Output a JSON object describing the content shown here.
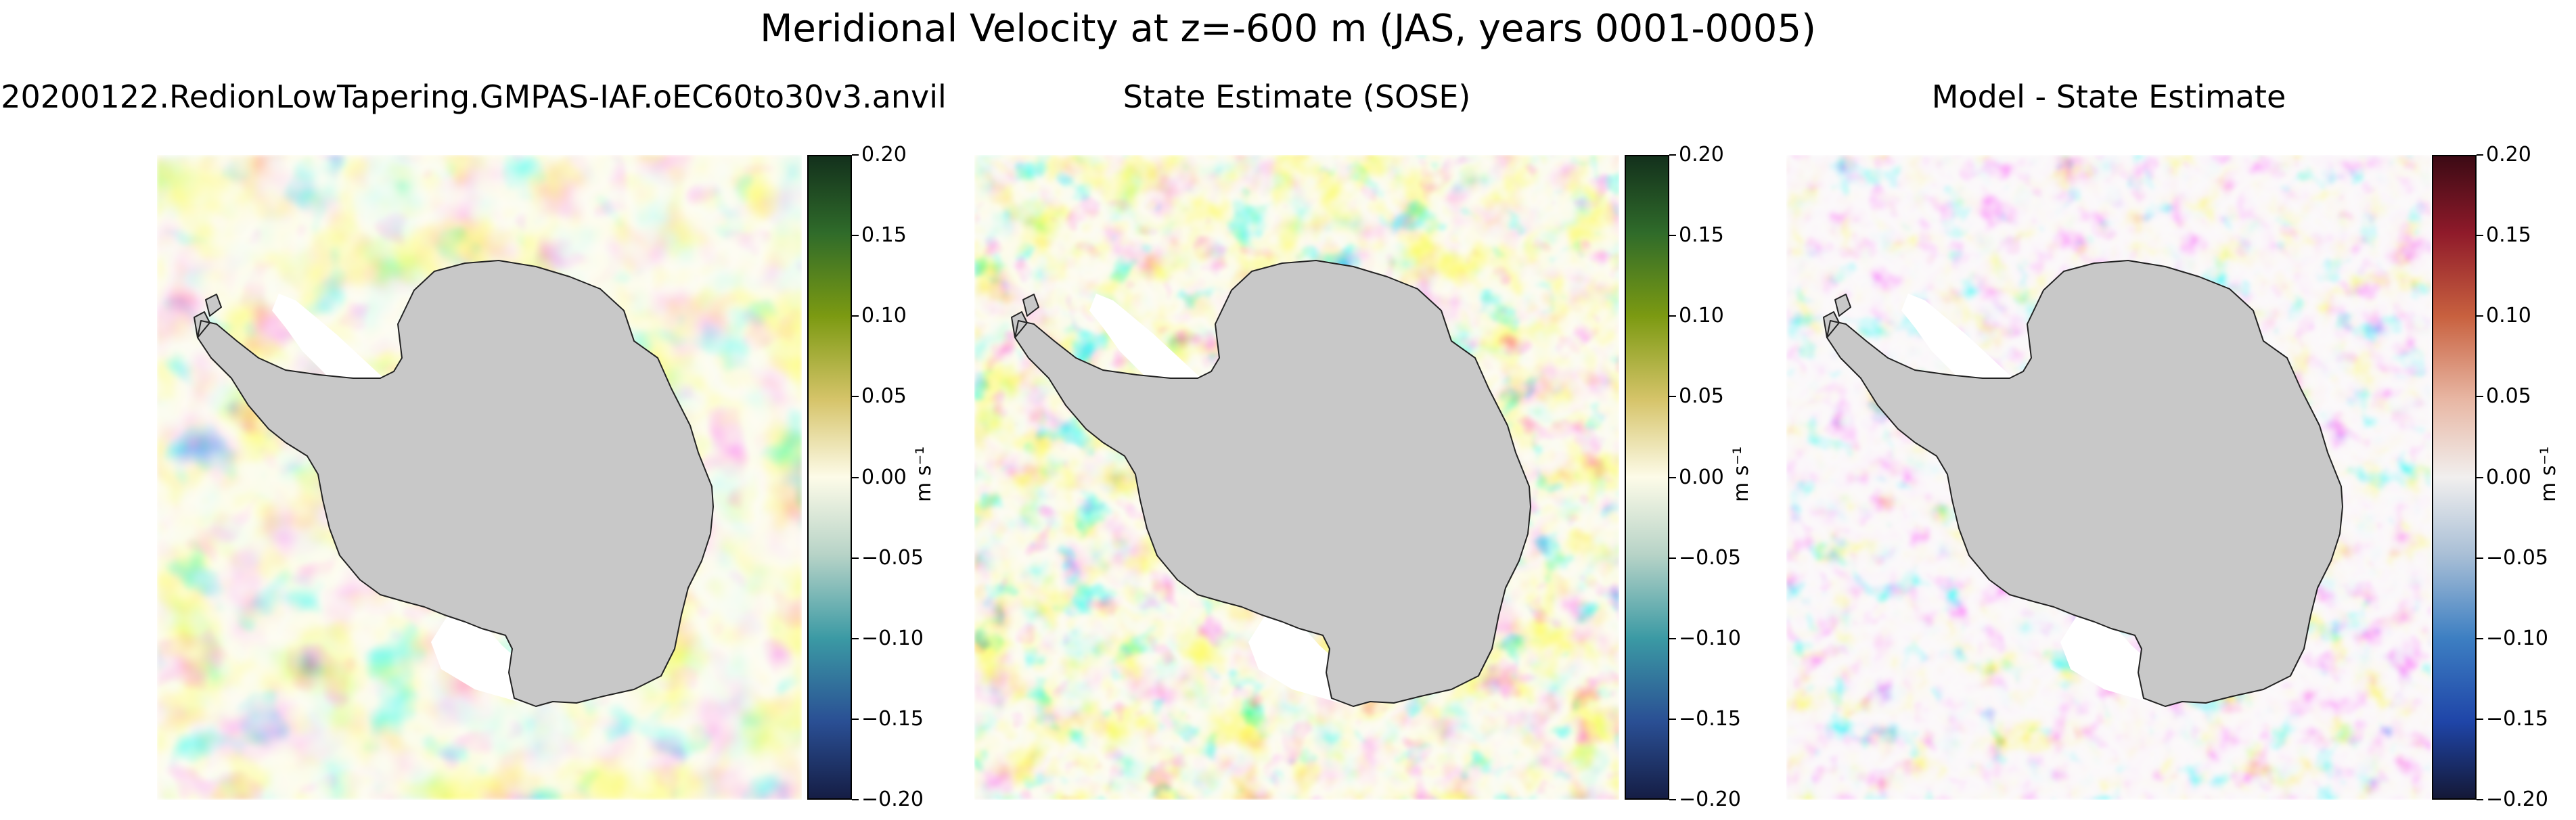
{
  "title": "Meridional Velocity at z=-600 m (JAS, years 0001-0005)",
  "panels": [
    {
      "title": "20200122.RedionLowTapering.GMPAS-IAF.oEC60to30v3.anvil"
    },
    {
      "title": "State Estimate (SOSE)"
    },
    {
      "title": "Model - State Estimate"
    }
  ],
  "colorbar": {
    "ticks": [
      "0.20",
      "0.15",
      "0.10",
      "0.05",
      "0.00",
      "−0.05",
      "−0.10",
      "−0.15",
      "−0.20"
    ],
    "unit": "m s⁻¹"
  },
  "colors": {
    "land": "#c8c8c8",
    "ice_shelf": "#ffffff",
    "positive_diverging": "#b2182b",
    "negative_diverging": "#2166ac",
    "positive_sequential": "#4d7a1a",
    "negative_sequential": "#2a6a8f"
  },
  "chart_data": [
    {
      "type": "heatmap",
      "title": "20200122.RedionLowTapering.GMPAS-IAF.oEC60to30v3.anvil",
      "variable": "Meridional Velocity",
      "depth": "z=-600 m",
      "season": "JAS",
      "years": "0001-0005",
      "projection": "south polar stereographic (Antarctica)",
      "colormap": "sequential blue-white-yellow-green",
      "clim": [
        -0.2,
        0.2
      ],
      "colorbar_label": "m s⁻¹",
      "colorbar_ticks": [
        0.2,
        0.15,
        0.1,
        0.05,
        0.0,
        -0.05,
        -0.1,
        -0.15,
        -0.2
      ]
    },
    {
      "type": "heatmap",
      "title": "State Estimate (SOSE)",
      "variable": "Meridional Velocity",
      "depth": "z=-600 m",
      "season": "JAS",
      "projection": "south polar stereographic (Antarctica)",
      "colormap": "sequential blue-white-yellow-green",
      "clim": [
        -0.2,
        0.2
      ],
      "colorbar_label": "m s⁻¹",
      "colorbar_ticks": [
        0.2,
        0.15,
        0.1,
        0.05,
        0.0,
        -0.05,
        -0.1,
        -0.15,
        -0.2
      ]
    },
    {
      "type": "heatmap",
      "title": "Model - State Estimate",
      "variable": "Meridional Velocity difference",
      "depth": "z=-600 m",
      "season": "JAS",
      "projection": "south polar stereographic (Antarctica)",
      "colormap": "diverging blue-white-red",
      "clim": [
        -0.2,
        0.2
      ],
      "colorbar_label": "m s⁻¹",
      "colorbar_ticks": [
        0.2,
        0.15,
        0.1,
        0.05,
        0.0,
        -0.05,
        -0.1,
        -0.15,
        -0.2
      ]
    }
  ]
}
